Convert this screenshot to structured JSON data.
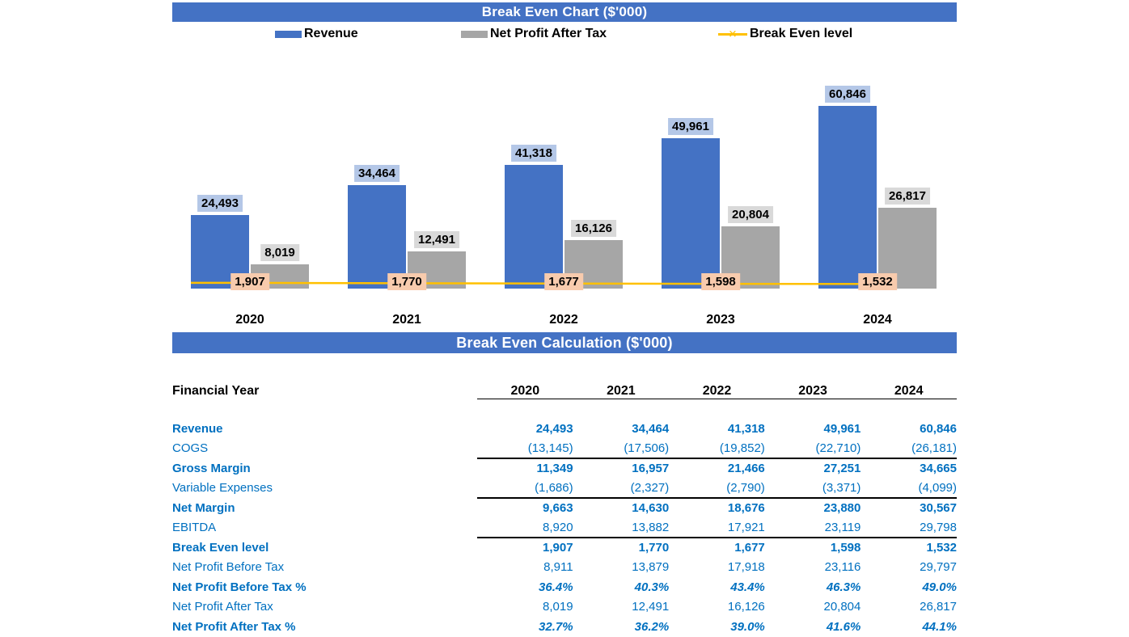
{
  "chart_data": {
    "type": "bar",
    "title": "Break Even Chart ($'000)",
    "categories": [
      "2020",
      "2021",
      "2022",
      "2023",
      "2024"
    ],
    "series": [
      {
        "name": "Revenue",
        "type": "bar",
        "color": "#4472C4",
        "label_bg": "#B4C7E7",
        "values": [
          24493,
          34464,
          41318,
          49961,
          60846
        ],
        "labels": [
          "24,493",
          "34,464",
          "41,318",
          "49,961",
          "60,846"
        ]
      },
      {
        "name": "Net Profit After Tax",
        "type": "bar",
        "color": "#A6A6A6",
        "label_bg": "#D9D9D9",
        "values": [
          8019,
          12491,
          16126,
          20804,
          26817
        ],
        "labels": [
          "8,019",
          "12,491",
          "16,126",
          "20,804",
          "26,817"
        ]
      },
      {
        "name": "Break Even level",
        "type": "line",
        "color": "#FFC000",
        "label_bg": "#F8CBAD",
        "values": [
          1907,
          1770,
          1677,
          1598,
          1532
        ],
        "labels": [
          "1,907",
          "1,770",
          "1,677",
          "1,598",
          "1,532"
        ]
      }
    ],
    "ylim": [
      0,
      62000
    ],
    "grid": false,
    "legend_position": "top",
    "value_labels": true
  },
  "calc_table": {
    "title": "Break Even Calculation ($'000)",
    "header_label": "Financial Year",
    "years": [
      "2020",
      "2021",
      "2022",
      "2023",
      "2024"
    ],
    "rows": [
      {
        "label": "Revenue",
        "values": [
          "24,493",
          "34,464",
          "41,318",
          "49,961",
          "60,846"
        ],
        "style": "bold",
        "border_top": false
      },
      {
        "label": "COGS",
        "values": [
          "(13,145)",
          "(17,506)",
          "(19,852)",
          "(22,710)",
          "(26,181)"
        ],
        "style": "regular",
        "border_top": false
      },
      {
        "label": "Gross Margin",
        "values": [
          "11,349",
          "16,957",
          "21,466",
          "27,251",
          "34,665"
        ],
        "style": "bold",
        "border_top": true
      },
      {
        "label": "Variable Expenses",
        "values": [
          "(1,686)",
          "(2,327)",
          "(2,790)",
          "(3,371)",
          "(4,099)"
        ],
        "style": "regular",
        "border_top": false
      },
      {
        "label": "Net Margin",
        "values": [
          "9,663",
          "14,630",
          "18,676",
          "23,880",
          "30,567"
        ],
        "style": "bold",
        "border_top": true
      },
      {
        "label": "EBITDA",
        "values": [
          "8,920",
          "13,882",
          "17,921",
          "23,119",
          "29,798"
        ],
        "style": "regular",
        "border_top": false
      },
      {
        "label": "Break Even level",
        "values": [
          "1,907",
          "1,770",
          "1,677",
          "1,598",
          "1,532"
        ],
        "style": "bold",
        "border_top": true
      },
      {
        "label": "Net Profit Before Tax",
        "values": [
          "8,911",
          "13,879",
          "17,918",
          "23,116",
          "29,797"
        ],
        "style": "regular",
        "border_top": false
      },
      {
        "label": "Net Profit Before Tax %",
        "values": [
          "36.4%",
          "40.3%",
          "43.4%",
          "46.3%",
          "49.0%"
        ],
        "style": "bold-italic",
        "border_top": false
      },
      {
        "label": "Net Profit After Tax",
        "values": [
          "8,019",
          "12,491",
          "16,126",
          "20,804",
          "26,817"
        ],
        "style": "regular",
        "border_top": false
      },
      {
        "label": "Net Profit After Tax %",
        "values": [
          "32.7%",
          "36.2%",
          "39.0%",
          "41.6%",
          "44.1%"
        ],
        "style": "bold-italic",
        "border_top": false
      }
    ]
  },
  "colors": {
    "banner_bg": "#4472C4",
    "banner_text": "#FFFFFF",
    "revenue_bar": "#4472C4",
    "net_profit_bar": "#A6A6A6",
    "break_even_line": "#FFC000",
    "revenue_label_bg": "#B4C7E7",
    "net_profit_label_bg": "#D9D9D9",
    "break_even_label_bg": "#F8CBAD",
    "table_text": "#0070C0",
    "axis_text": "#000000"
  }
}
